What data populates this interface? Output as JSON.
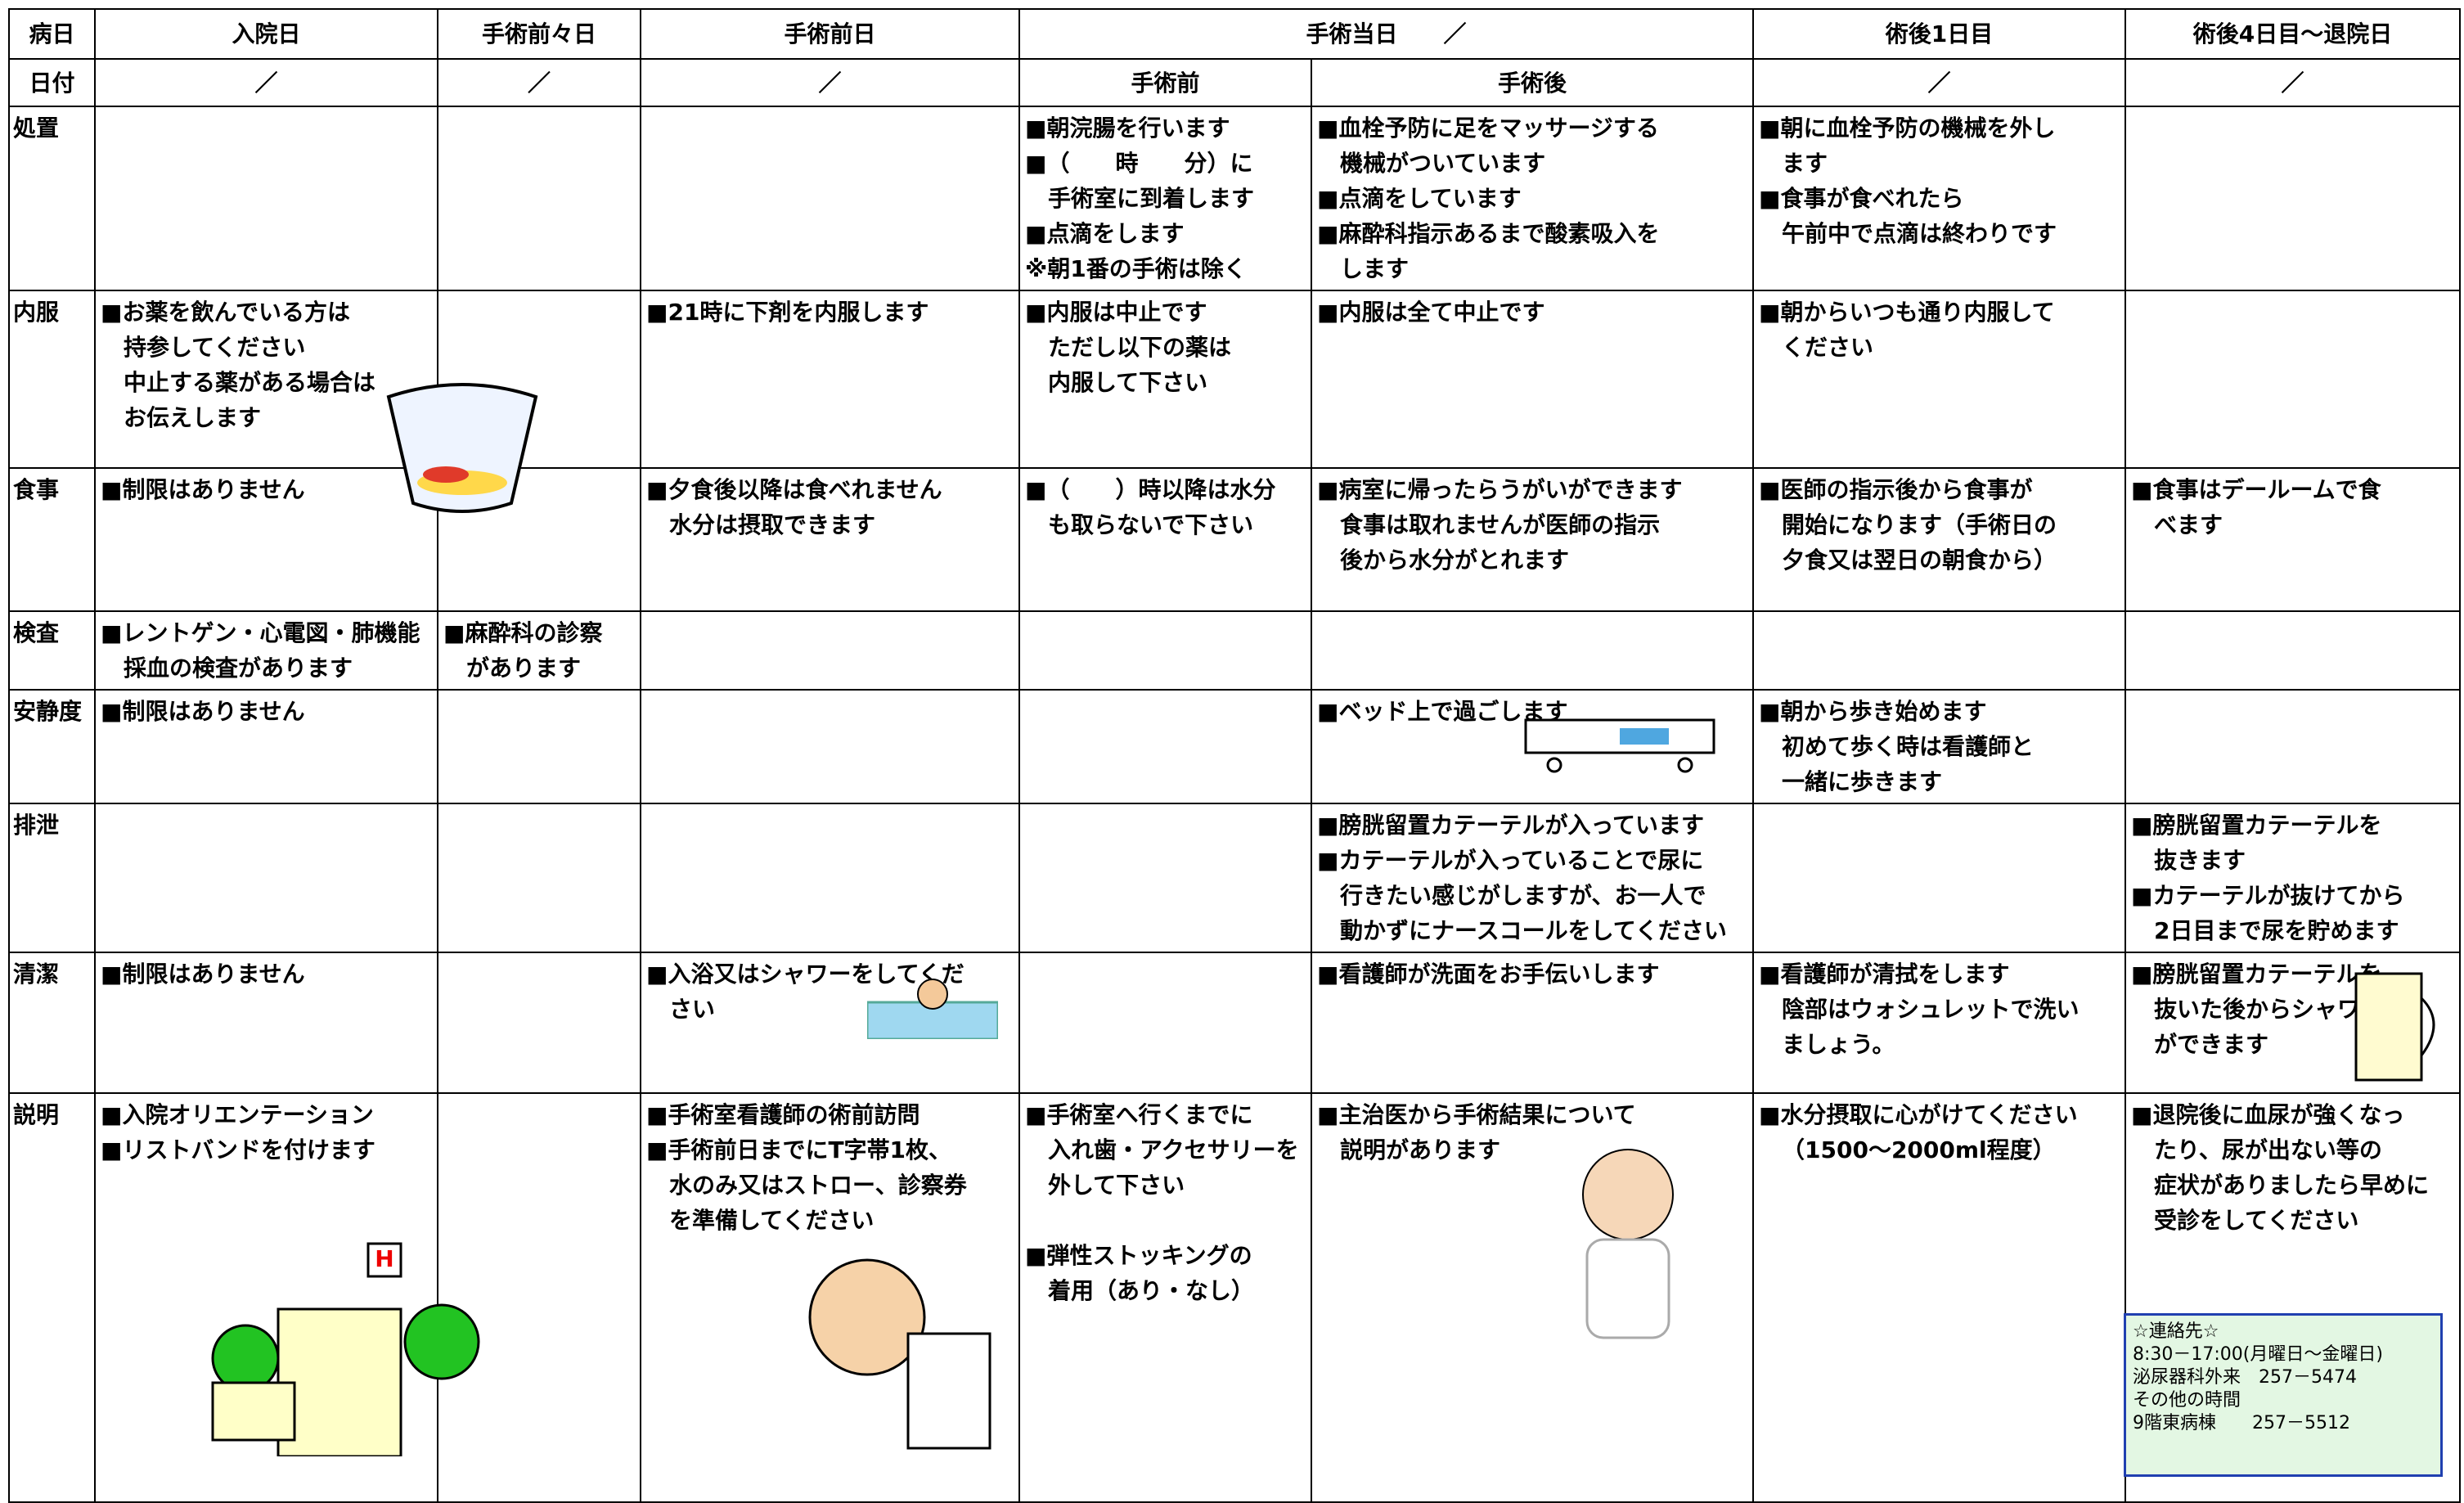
{
  "header": {
    "row1": [
      "病日",
      "入院日",
      "手術前々日",
      "手術前日",
      "手術当日　　／",
      "術後1日目",
      "術後4日目～退院日"
    ],
    "row2": [
      "日付",
      "／",
      "／",
      "／",
      "手術前",
      "手術後",
      "／",
      "／"
    ]
  },
  "rows": [
    {
      "label": "処置",
      "cells": [
        [],
        [],
        [],
        [
          [
            "■朝浣腸を行います",
            "■（　　時　　分）に",
            "手術室に到着します",
            "■点滴をします",
            "※朝1番の手術は除く"
          ]
        ],
        [
          [
            "■血栓予防に足をマッサージする",
            "機械がついています",
            "■点滴をしています",
            "■麻酔科指示あるまで酸素吸入を",
            "します"
          ]
        ],
        [
          [
            "■朝に血栓予防の機械を外し",
            "ます",
            "■食事が食べれたら",
            "午前中で点滴は終わりです"
          ]
        ],
        []
      ]
    },
    {
      "label": "内服",
      "cells": [
        [
          [
            "■お薬を飲んでいる方は",
            "持参してください",
            "中止する薬がある場合は",
            "お伝えします"
          ]
        ],
        [],
        [
          [
            "■21時に下剤を内服します"
          ]
        ],
        [
          [
            "■内服は中止です",
            "ただし以下の薬は",
            "内服して下さい"
          ]
        ],
        [
          [
            "■内服は全て中止です"
          ]
        ],
        [
          [
            "■朝からいつも通り内服して",
            "ください"
          ]
        ],
        []
      ]
    },
    {
      "label": "食事",
      "cells": [
        [
          [
            "■制限はありません"
          ]
        ],
        [],
        [
          [
            "■夕食後以降は食べれません",
            "水分は摂取できます"
          ]
        ],
        [
          [
            "■（　　）時以降は水分",
            "も取らないで下さい"
          ]
        ],
        [
          [
            "■病室に帰ったらうがいができます",
            "食事は取れませんが医師の指示",
            "後から水分がとれます"
          ]
        ],
        [
          [
            "■医師の指示後から食事が",
            "開始になります（手術日の",
            "夕食又は翌日の朝食から）"
          ]
        ],
        [
          [
            "■食事はデールームで食",
            "べます"
          ]
        ]
      ]
    },
    {
      "label": "検査",
      "cells": [
        [
          [
            "■レントゲン・心電図・肺機能",
            "採血の検査があります"
          ]
        ],
        [
          [
            "■麻酔科の診察",
            "があります"
          ]
        ],
        [],
        [],
        [],
        [],
        []
      ]
    },
    {
      "label": "安静度",
      "cells": [
        [
          [
            "■制限はありません"
          ]
        ],
        [],
        [],
        [],
        [
          [
            "■ベッド上で過ごします"
          ]
        ],
        [
          [
            "■朝から歩き始めます",
            "初めて歩く時は看護師と",
            "一緒に歩きます"
          ]
        ],
        []
      ]
    },
    {
      "label": "排泄",
      "cells": [
        [],
        [],
        [],
        [],
        [
          [
            "■膀胱留置カテーテルが入っています",
            "■カテーテルが入っていることで尿に",
            "行きたい感じがしますが、お一人で",
            "動かずにナースコールをしてください"
          ]
        ],
        [],
        [
          [
            "■膀胱留置カテーテルを",
            "抜きます",
            "■カテーテルが抜けてから",
            "2日目まで尿を貯めます"
          ]
        ]
      ]
    },
    {
      "label": "清潔",
      "cells": [
        [
          [
            "■制限はありません"
          ]
        ],
        [],
        [
          [
            "■入浴又はシャワーをしてくだ",
            "さい"
          ]
        ],
        [],
        [
          [
            "■看護師が洗面をお手伝いします"
          ]
        ],
        [
          [
            "■看護師が清拭をします",
            "陰部はウォシュレットで洗い",
            "ましょう。"
          ]
        ],
        [
          [
            "■膀胱留置カテーテルを",
            "抜いた後からシャワー",
            "ができます"
          ]
        ]
      ]
    },
    {
      "label": "説明",
      "cells": [
        [
          [
            "■入院オリエンテーション",
            "■リストバンドを付けます"
          ]
        ],
        [],
        [
          [
            "■手術室看護師の術前訪問",
            "■手術前日までにT字帯1枚、",
            "水のみ又はストロー、診察券",
            "を準備してください"
          ]
        ],
        [
          [
            "■手術室へ行くまでに",
            "入れ歯・アクセサリーを",
            "外して下さい"
          ],
          [
            "■弾性ストッキングの",
            "着用（あり・なし）"
          ]
        ],
        [
          [
            "■主治医から手術結果について",
            "説明があります"
          ]
        ],
        [
          [
            "■水分摂取に心がけてください",
            "（1500～2000ml程度）"
          ]
        ],
        [
          [
            "■退院後に血尿が強くなっ",
            "たり、尿が出ない等の",
            "症状がありましたら早めに",
            "受診をしてください"
          ]
        ]
      ]
    }
  ],
  "contact": [
    "☆連絡先☆",
    "8:30－17:00(月曜日～金曜日)",
    "泌尿器科外来　257－5474",
    "その他の時間",
    "9階東病棟　　257－5512"
  ]
}
